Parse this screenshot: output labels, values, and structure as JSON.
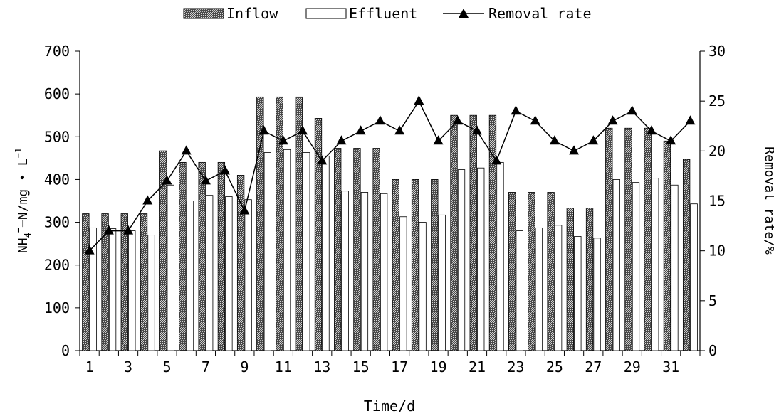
{
  "chart_data": {
    "type": "bar",
    "title": "",
    "xlabel": "Time/d",
    "ylabel_left": {
      "base": "NH",
      "sub": "4",
      "sup": "+",
      "rest": "−N/mg • L",
      "sup2": "−1"
    },
    "ylabel_right": "Removal rate/%",
    "ylim_left": [
      0,
      700
    ],
    "ylim_right": [
      0,
      30
    ],
    "yticks_left": [
      "0",
      "100",
      "200",
      "300",
      "400",
      "500",
      "600",
      "700"
    ],
    "yticks_right": [
      "0",
      "5",
      "10",
      "15",
      "20",
      "25",
      "30"
    ],
    "x": [
      1,
      2,
      3,
      4,
      5,
      6,
      7,
      8,
      9,
      10,
      11,
      12,
      13,
      14,
      15,
      16,
      17,
      18,
      19,
      20,
      21,
      22,
      23,
      24,
      25,
      26,
      27,
      28,
      29,
      30,
      31,
      32
    ],
    "xtick_labels": [
      "1",
      "3",
      "5",
      "7",
      "9",
      "11",
      "13",
      "15",
      "17",
      "19",
      "21",
      "23",
      "25",
      "27",
      "29",
      "31"
    ],
    "legend_position": "top-center",
    "grid": false,
    "series": [
      {
        "name": "Inflow",
        "kind": "bar",
        "axis": "left",
        "values": [
          320,
          320,
          320,
          320,
          467,
          440,
          440,
          440,
          410,
          593,
          593,
          593,
          543,
          473,
          473,
          473,
          400,
          400,
          400,
          550,
          550,
          550,
          370,
          370,
          370,
          333,
          333,
          520,
          520,
          520,
          490,
          447
        ]
      },
      {
        "name": "Effluent",
        "kind": "bar",
        "axis": "left",
        "values": [
          287,
          285,
          280,
          270,
          387,
          350,
          363,
          360,
          353,
          463,
          470,
          463,
          455,
          373,
          370,
          367,
          313,
          300,
          317,
          423,
          427,
          440,
          280,
          287,
          293,
          267,
          263,
          400,
          393,
          403,
          387,
          343
        ]
      },
      {
        "name": "Removal rate",
        "kind": "line",
        "axis": "right",
        "values": [
          10,
          12,
          12,
          15,
          17,
          20,
          17,
          18,
          14,
          22,
          21,
          22,
          19,
          21,
          22,
          23,
          22,
          25,
          21,
          23,
          22,
          19,
          24,
          23,
          21,
          20,
          21,
          23,
          24,
          22,
          21,
          23
        ]
      }
    ]
  }
}
